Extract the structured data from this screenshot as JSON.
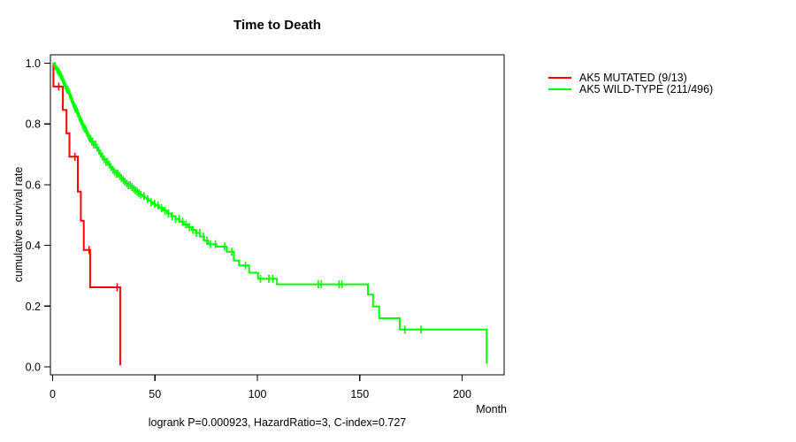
{
  "title": "Time to Death",
  "caption": "logrank P=0.000923, HazardRatio=3, C-index=0.727",
  "axes": {
    "x_label": "Month",
    "y_label": "cumulative survival rate",
    "x_ticks": [
      0,
      50,
      100,
      150,
      200
    ],
    "y_ticks": [
      "0.0",
      "0.2",
      "0.4",
      "0.6",
      "0.8",
      "1.0"
    ]
  },
  "legend": {
    "items": [
      {
        "label": "AK5 MUTATED (9/13)",
        "color": "#ff0000"
      },
      {
        "label": "AK5 WILD-TYPE (211/496)",
        "color": "#00ff00"
      }
    ]
  },
  "chart_data": {
    "type": "line",
    "subtype": "kaplan-meier-step",
    "title": "Time to Death",
    "xlabel": "Month",
    "ylabel": "cumulative survival rate",
    "xlim": [
      0,
      220
    ],
    "ylim": [
      0.0,
      1.0
    ],
    "grid": false,
    "legend_position": "right-outside",
    "annotation": "logrank P=0.000923, HazardRatio=3, C-index=0.727",
    "series": [
      {
        "name": "AK5 MUTATED (9/13)",
        "color": "#ff0000",
        "events": "9/13",
        "steps": [
          [
            0,
            1.0
          ],
          [
            0.4,
            0.923
          ],
          [
            5.0,
            0.846
          ],
          [
            6.8,
            0.769
          ],
          [
            8.2,
            0.692
          ],
          [
            12.3,
            0.577
          ],
          [
            13.8,
            0.481
          ],
          [
            15.2,
            0.385
          ],
          [
            18.3,
            0.262
          ],
          [
            33,
            0.005
          ]
        ],
        "censor_marks": [
          3.0,
          10.9,
          17.8,
          31.5
        ]
      },
      {
        "name": "AK5 WILD-TYPE (211/496)",
        "color": "#00ff00",
        "events": "211/496",
        "steps": [
          [
            0,
            1.0
          ],
          [
            0.5,
            0.996
          ],
          [
            1,
            0.99
          ],
          [
            1.5,
            0.985
          ],
          [
            2,
            0.979
          ],
          [
            2.5,
            0.973
          ],
          [
            3,
            0.967
          ],
          [
            3.5,
            0.961
          ],
          [
            4,
            0.955
          ],
          [
            4.5,
            0.948
          ],
          [
            5,
            0.941
          ],
          [
            5.5,
            0.934
          ],
          [
            6,
            0.927
          ],
          [
            6.5,
            0.92
          ],
          [
            7,
            0.913
          ],
          [
            7.5,
            0.906
          ],
          [
            8,
            0.898
          ],
          [
            8.5,
            0.89
          ],
          [
            9,
            0.882
          ],
          [
            9.5,
            0.874
          ],
          [
            10,
            0.866
          ],
          [
            10.5,
            0.858
          ],
          [
            11,
            0.85
          ],
          [
            11.5,
            0.842
          ],
          [
            12,
            0.835
          ],
          [
            12.5,
            0.827
          ],
          [
            13,
            0.82
          ],
          [
            13.5,
            0.813
          ],
          [
            14,
            0.806
          ],
          [
            14.5,
            0.799
          ],
          [
            15,
            0.792
          ],
          [
            15.5,
            0.785
          ],
          [
            16,
            0.778
          ],
          [
            16.5,
            0.771
          ],
          [
            17,
            0.764
          ],
          [
            17.5,
            0.757
          ],
          [
            18,
            0.751
          ],
          [
            19,
            0.742
          ],
          [
            20,
            0.732
          ],
          [
            21,
            0.722
          ],
          [
            22,
            0.712
          ],
          [
            23,
            0.702
          ],
          [
            24,
            0.693
          ],
          [
            25,
            0.684
          ],
          [
            26,
            0.675
          ],
          [
            27,
            0.666
          ],
          [
            28,
            0.658
          ],
          [
            29,
            0.65
          ],
          [
            30,
            0.643
          ],
          [
            31,
            0.636
          ],
          [
            32,
            0.629
          ],
          [
            33,
            0.622
          ],
          [
            34,
            0.616
          ],
          [
            35,
            0.61
          ],
          [
            36,
            0.604
          ],
          [
            37,
            0.598
          ],
          [
            38,
            0.592
          ],
          [
            39,
            0.587
          ],
          [
            40,
            0.582
          ],
          [
            41,
            0.577
          ],
          [
            42,
            0.572
          ],
          [
            43,
            0.567
          ],
          [
            44,
            0.562
          ],
          [
            45,
            0.557
          ],
          [
            46,
            0.552
          ],
          [
            47,
            0.547
          ],
          [
            48,
            0.542
          ],
          [
            49,
            0.537
          ],
          [
            50,
            0.532
          ],
          [
            52,
            0.523
          ],
          [
            54,
            0.514
          ],
          [
            56,
            0.505
          ],
          [
            58,
            0.496
          ],
          [
            60,
            0.487
          ],
          [
            62,
            0.478
          ],
          [
            64,
            0.469
          ],
          [
            66,
            0.46
          ],
          [
            68,
            0.451
          ],
          [
            70,
            0.441
          ],
          [
            72,
            0.429
          ],
          [
            74,
            0.416
          ],
          [
            76,
            0.404
          ],
          [
            80,
            0.396
          ],
          [
            85,
            0.379
          ],
          [
            88.5,
            0.35
          ],
          [
            91,
            0.334
          ],
          [
            96,
            0.31
          ],
          [
            100.3,
            0.29
          ],
          [
            109.6,
            0.272
          ],
          [
            154,
            0.238
          ],
          [
            156.5,
            0.199
          ],
          [
            159.5,
            0.16
          ],
          [
            169.5,
            0.123
          ],
          [
            212,
            0.01
          ]
        ],
        "censor_marks": [
          1.2,
          2.1,
          2.8,
          3.4,
          3.9,
          4.3,
          4.8,
          5.2,
          5.7,
          6.1,
          6.6,
          7.0,
          7.4,
          7.9,
          8.3,
          8.8,
          9.2,
          9.7,
          10.1,
          10.6,
          11.0,
          11.4,
          11.9,
          12.3,
          12.8,
          13.2,
          13.7,
          14.1,
          14.6,
          15.0,
          15.5,
          15.9,
          16.4,
          16.8,
          17.3,
          17.7,
          18.2,
          18.6,
          19.1,
          19.5,
          20.0,
          20.9,
          21.7,
          22.6,
          23.4,
          24.3,
          25.1,
          26.0,
          26.8,
          27.7,
          28.5,
          29.4,
          30.2,
          31.1,
          31.9,
          32.8,
          33.6,
          34.5,
          35.3,
          36.2,
          37.0,
          37.9,
          38.7,
          39.6,
          40.4,
          41.3,
          42.1,
          43.0,
          44.7,
          46.4,
          48.1,
          49.8,
          51.5,
          53.2,
          54.9,
          56.6,
          58.3,
          60.0,
          61.7,
          63.4,
          65.1,
          66.8,
          68.5,
          70.2,
          71.9,
          73.6,
          75.3,
          77.0,
          79.5,
          84.0,
          87.5,
          94.2,
          101.5,
          105.6,
          107.5,
          129.8,
          131.2,
          139.9,
          141.3,
          172.0,
          179.9
        ]
      }
    ]
  }
}
